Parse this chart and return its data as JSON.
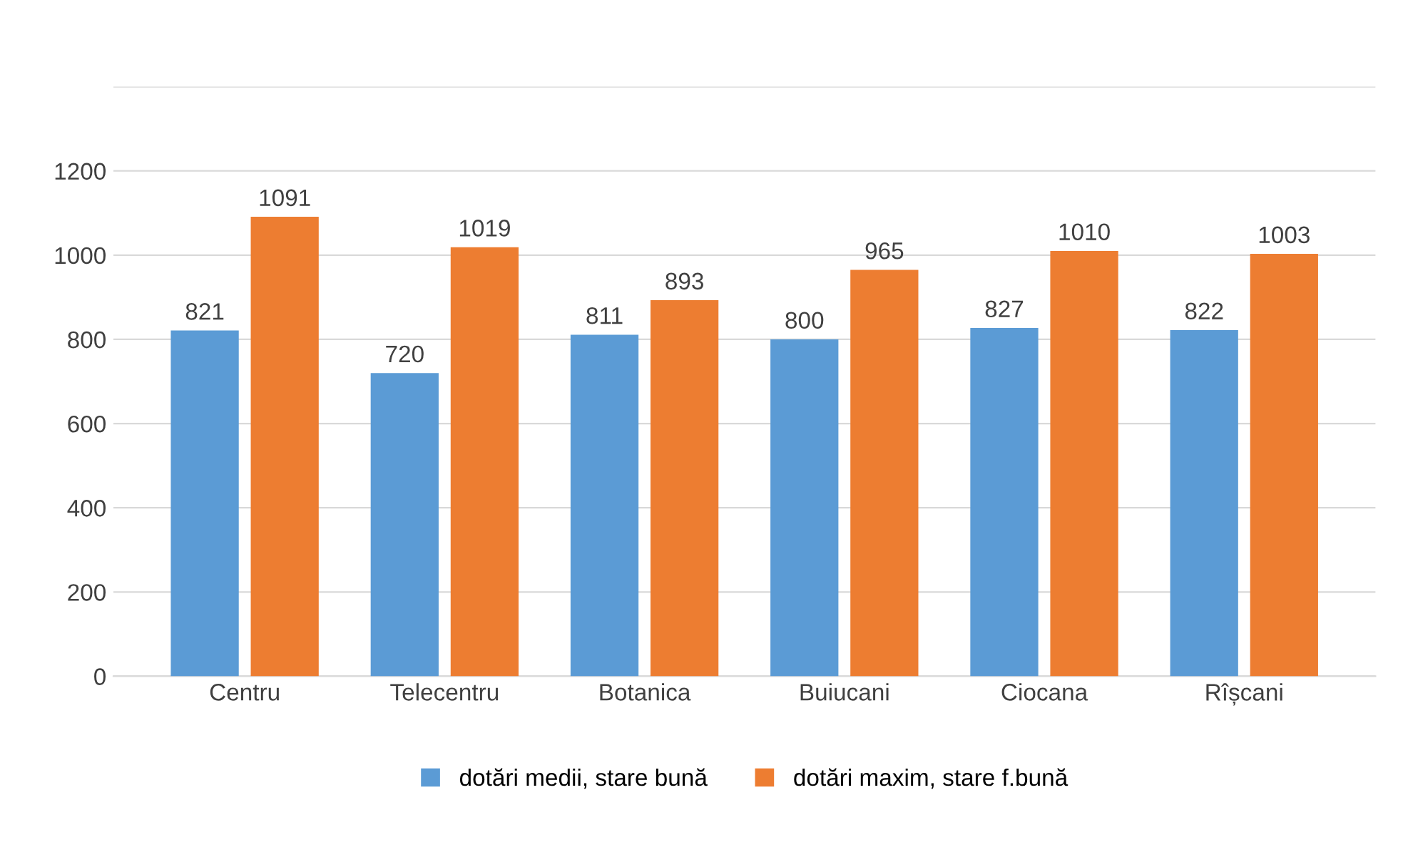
{
  "chart_data": {
    "type": "bar",
    "categories": [
      "Centru",
      "Telecentru",
      "Botanica",
      "Buiucani",
      "Ciocana",
      "Rîșcani"
    ],
    "series": [
      {
        "name": "dotări medii, stare bună",
        "color": "#5b9bd5",
        "values": [
          821,
          720,
          811,
          800,
          827,
          822
        ]
      },
      {
        "name": "dotări maxim, stare f.bună",
        "color": "#ed7d31",
        "values": [
          1091,
          1019,
          893,
          965,
          1010,
          1003
        ]
      }
    ],
    "ylim": [
      0,
      1400
    ],
    "yticks": [
      0,
      200,
      400,
      600,
      800,
      1000,
      1200,
      {
        "value": 1400,
        "label": null
      }
    ],
    "grid": "y",
    "legend": "bottom",
    "data_labels": true
  }
}
